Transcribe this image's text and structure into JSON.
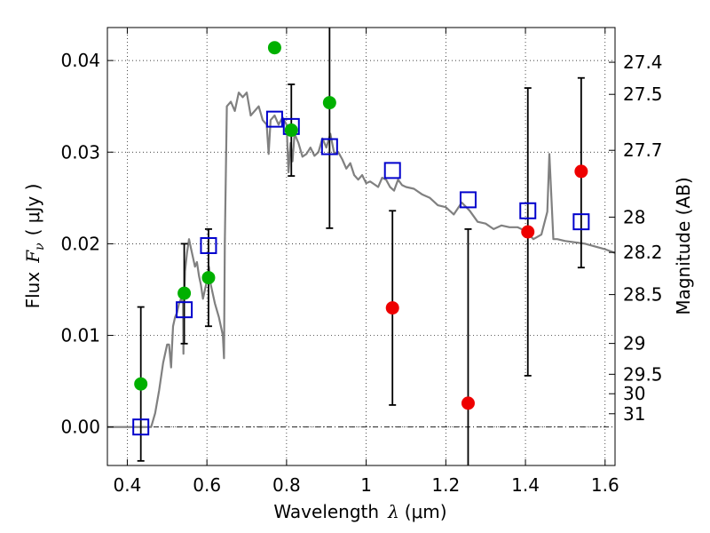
{
  "chart_data": {
    "type": "scatter",
    "xlabel_text": "Wavelength",
    "xlabel_symbol": "λ",
    "xlabel_unit": "(μm)",
    "ylabel_text": "Flux",
    "ylabel_symbol": "F",
    "ylabel_sub": "ν",
    "ylabel_unit": "( μJy )",
    "y2label": "Magnitude (AB)",
    "xlim": [
      0.35,
      1.625
    ],
    "ylim": [
      -0.0042,
      0.0436
    ],
    "grid": true,
    "xticks": [
      0.4,
      0.6,
      0.8,
      1.0,
      1.2,
      1.4,
      1.6
    ],
    "xtick_labels": [
      "0.4",
      "0.6",
      "0.8",
      "1",
      "1.2",
      "1.4",
      "1.6"
    ],
    "yticks": [
      0.0,
      0.01,
      0.02,
      0.03,
      0.04
    ],
    "ytick_labels": [
      "0.00",
      "0.01",
      "0.02",
      "0.03",
      "0.04"
    ],
    "mag_ticks": [
      27.4,
      27.5,
      27.7,
      28,
      28.2,
      28.5,
      29,
      29.5,
      30,
      31
    ],
    "mag_tick_labels": [
      "27.4",
      "27.5",
      "27.7",
      "28",
      "28.2",
      "28.5",
      "29",
      "29.5",
      "30",
      "31"
    ],
    "zero_line": 0.0,
    "series": [
      {
        "name": "model SED",
        "kind": "line",
        "color": "#808080",
        "x": [
          0.35,
          0.46,
          0.47,
          0.48,
          0.49,
          0.5,
          0.505,
          0.51,
          0.512,
          0.515,
          0.52,
          0.525,
          0.53,
          0.535,
          0.54,
          0.541,
          0.542,
          0.545,
          0.55,
          0.555,
          0.56,
          0.57,
          0.575,
          0.58,
          0.585,
          0.59,
          0.6,
          0.605,
          0.61,
          0.62,
          0.63,
          0.64,
          0.643,
          0.645,
          0.65,
          0.66,
          0.67,
          0.68,
          0.69,
          0.7,
          0.71,
          0.72,
          0.73,
          0.74,
          0.75,
          0.755,
          0.76,
          0.77,
          0.78,
          0.79,
          0.8,
          0.805,
          0.81,
          0.815,
          0.82,
          0.83,
          0.84,
          0.85,
          0.86,
          0.87,
          0.88,
          0.89,
          0.9,
          0.91,
          0.92,
          0.93,
          0.94,
          0.95,
          0.96,
          0.97,
          0.98,
          0.99,
          1.0,
          1.01,
          1.02,
          1.03,
          1.04,
          1.05,
          1.06,
          1.07,
          1.08,
          1.09,
          1.1,
          1.12,
          1.14,
          1.16,
          1.18,
          1.2,
          1.22,
          1.24,
          1.26,
          1.28,
          1.3,
          1.32,
          1.34,
          1.36,
          1.38,
          1.4,
          1.42,
          1.44,
          1.455,
          1.46,
          1.47,
          1.48,
          1.5,
          1.55,
          1.6,
          1.625
        ],
        "y": [
          0.0,
          0.0,
          0.0015,
          0.004,
          0.007,
          0.009,
          0.009,
          0.0065,
          0.0085,
          0.011,
          0.012,
          0.0125,
          0.0135,
          0.014,
          0.0135,
          0.008,
          0.0125,
          0.017,
          0.019,
          0.0205,
          0.0195,
          0.0175,
          0.018,
          0.0165,
          0.0155,
          0.014,
          0.016,
          0.0175,
          0.0155,
          0.0135,
          0.012,
          0.01,
          0.0075,
          0.02,
          0.035,
          0.0355,
          0.0345,
          0.0365,
          0.036,
          0.0365,
          0.034,
          0.0345,
          0.035,
          0.0335,
          0.033,
          0.0298,
          0.0335,
          0.034,
          0.033,
          0.0338,
          0.033,
          0.0278,
          0.031,
          0.029,
          0.032,
          0.031,
          0.0295,
          0.0298,
          0.0305,
          0.0296,
          0.03,
          0.0315,
          0.0305,
          0.032,
          0.0298,
          0.03,
          0.0292,
          0.0282,
          0.0288,
          0.0275,
          0.027,
          0.0275,
          0.0266,
          0.0268,
          0.0265,
          0.0262,
          0.0272,
          0.027,
          0.0262,
          0.0258,
          0.027,
          0.0264,
          0.0262,
          0.026,
          0.0254,
          0.025,
          0.0242,
          0.024,
          0.0232,
          0.0245,
          0.0236,
          0.0224,
          0.0222,
          0.0216,
          0.022,
          0.0218,
          0.0218,
          0.0214,
          0.0205,
          0.021,
          0.0235,
          0.0298,
          0.0205,
          0.0205,
          0.0203,
          0.02,
          0.0194,
          0.019
        ]
      },
      {
        "name": "model photometry",
        "kind": "open-square",
        "color": "#0000cc",
        "x": [
          0.434,
          0.543,
          0.604,
          0.77,
          0.812,
          0.908,
          1.066,
          1.256,
          1.406,
          1.54
        ],
        "y": [
          0.0,
          0.0128,
          0.0198,
          0.0336,
          0.0328,
          0.0306,
          0.028,
          0.0248,
          0.0236,
          0.0224
        ]
      },
      {
        "name": "detections",
        "kind": "filled-circle",
        "color": "#00b000",
        "x": [
          0.434,
          0.543,
          0.604,
          0.77,
          0.812,
          0.908
        ],
        "y": [
          0.0047,
          0.0146,
          0.0163,
          0.0414,
          0.0324,
          0.0354
        ]
      },
      {
        "name": "non-detections",
        "kind": "filled-circle",
        "color": "#ee0000",
        "x": [
          1.066,
          1.256,
          1.406,
          1.54
        ],
        "y": [
          0.013,
          0.0026,
          0.0213,
          0.0279
        ]
      }
    ],
    "errorbars": {
      "color": "#000000",
      "x": [
        0.434,
        0.543,
        0.604,
        0.77,
        0.812,
        0.908,
        1.066,
        1.256,
        1.406,
        1.54
      ],
      "low": [
        -0.0037,
        0.0091,
        0.011,
        0.0436,
        0.0274,
        0.0217,
        0.0024,
        -0.0042,
        0.0056,
        0.0174
      ],
      "high": [
        0.0131,
        0.02,
        0.0216,
        0.0436,
        0.0374,
        0.0436,
        0.0236,
        0.0216,
        0.037,
        0.0381
      ],
      "capped_low": [
        true,
        true,
        true,
        false,
        true,
        true,
        true,
        false,
        true,
        true
      ],
      "capped_high": [
        true,
        true,
        true,
        false,
        true,
        false,
        true,
        true,
        true,
        true
      ]
    }
  }
}
